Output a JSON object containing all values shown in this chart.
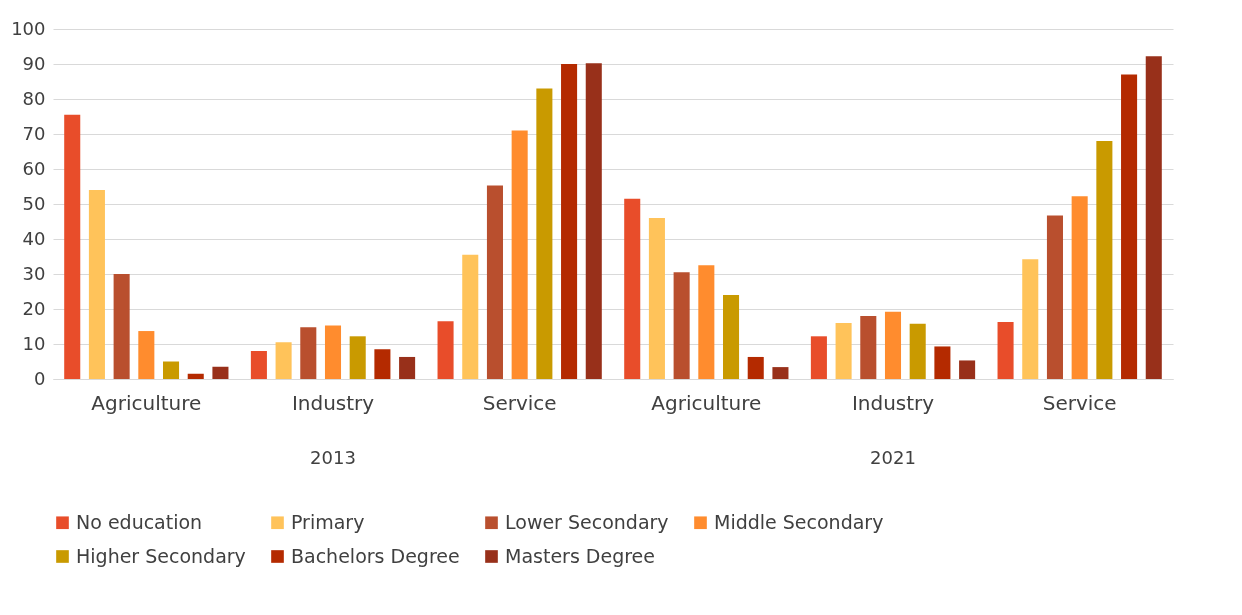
{
  "chart_data": {
    "type": "bar",
    "categories": [
      "Agriculture",
      "Industry",
      "Service",
      "Agriculture",
      "Industry",
      "Service"
    ],
    "annotations": [
      "2013",
      "2021"
    ],
    "series": [
      {
        "name": "No education",
        "color": "#e84d2a",
        "values": [
          75.5,
          8,
          16.5,
          51.5,
          12.2,
          16.3
        ]
      },
      {
        "name": "Primary",
        "color": "#ffc35a",
        "values": [
          54,
          10.5,
          35.5,
          46,
          16,
          34.2
        ]
      },
      {
        "name": "Lower Secondary",
        "color": "#b94f2e",
        "values": [
          30,
          14.8,
          55.3,
          30.5,
          18,
          46.7
        ]
      },
      {
        "name": "Middle Secondary",
        "color": "#ff8c2e",
        "values": [
          13.7,
          15.3,
          71,
          32.5,
          19.2,
          52.2
        ]
      },
      {
        "name": "Higher Secondary",
        "color": "#c99a00",
        "values": [
          5,
          12.2,
          83,
          24,
          15.8,
          68
        ]
      },
      {
        "name": "Bachelors Degree",
        "color": "#b42a00",
        "values": [
          1.5,
          8.5,
          90,
          6.3,
          9.3,
          87
        ]
      },
      {
        "name": "Masters Degree",
        "color": "#98301a",
        "values": [
          3.5,
          6.3,
          90.2,
          3.4,
          5.3,
          92.2
        ]
      }
    ],
    "ylim": [
      0,
      100
    ],
    "yticks": [
      0,
      10,
      20,
      30,
      40,
      50,
      60,
      70,
      80,
      90,
      100
    ],
    "grid": "y",
    "legend": "bottom"
  }
}
